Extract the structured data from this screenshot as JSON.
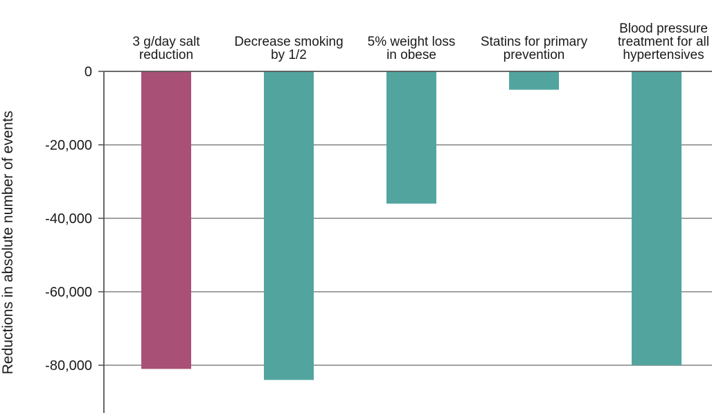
{
  "chart_data": {
    "type": "bar",
    "categories": [
      [
        "3 g/day salt",
        "reduction"
      ],
      [
        "Decrease smoking",
        "by 1/2"
      ],
      [
        "5% weight loss",
        "in obese"
      ],
      [
        "Statins for primary",
        "prevention"
      ],
      [
        "Blood pressure",
        "treatment for all",
        "hypertensives"
      ]
    ],
    "values": [
      -81000,
      -84000,
      -36000,
      -5000,
      -80000
    ],
    "bar_colors": [
      "#a85075",
      "#52a59e",
      "#52a59e",
      "#52a59e",
      "#52a59e"
    ],
    "ylabel": "Reductions in absolute number of events",
    "ylim": [
      -93000,
      0
    ],
    "yticks": [
      0,
      -20000,
      -40000,
      -60000,
      -80000
    ],
    "ytick_labels": [
      "0",
      "-20,000",
      "-40,000",
      "-60,000",
      "-80,000"
    ],
    "grid": true,
    "category_axis_position": "top"
  },
  "colors": {
    "gridline": "#8c8c8c",
    "axis": "#555555"
  }
}
